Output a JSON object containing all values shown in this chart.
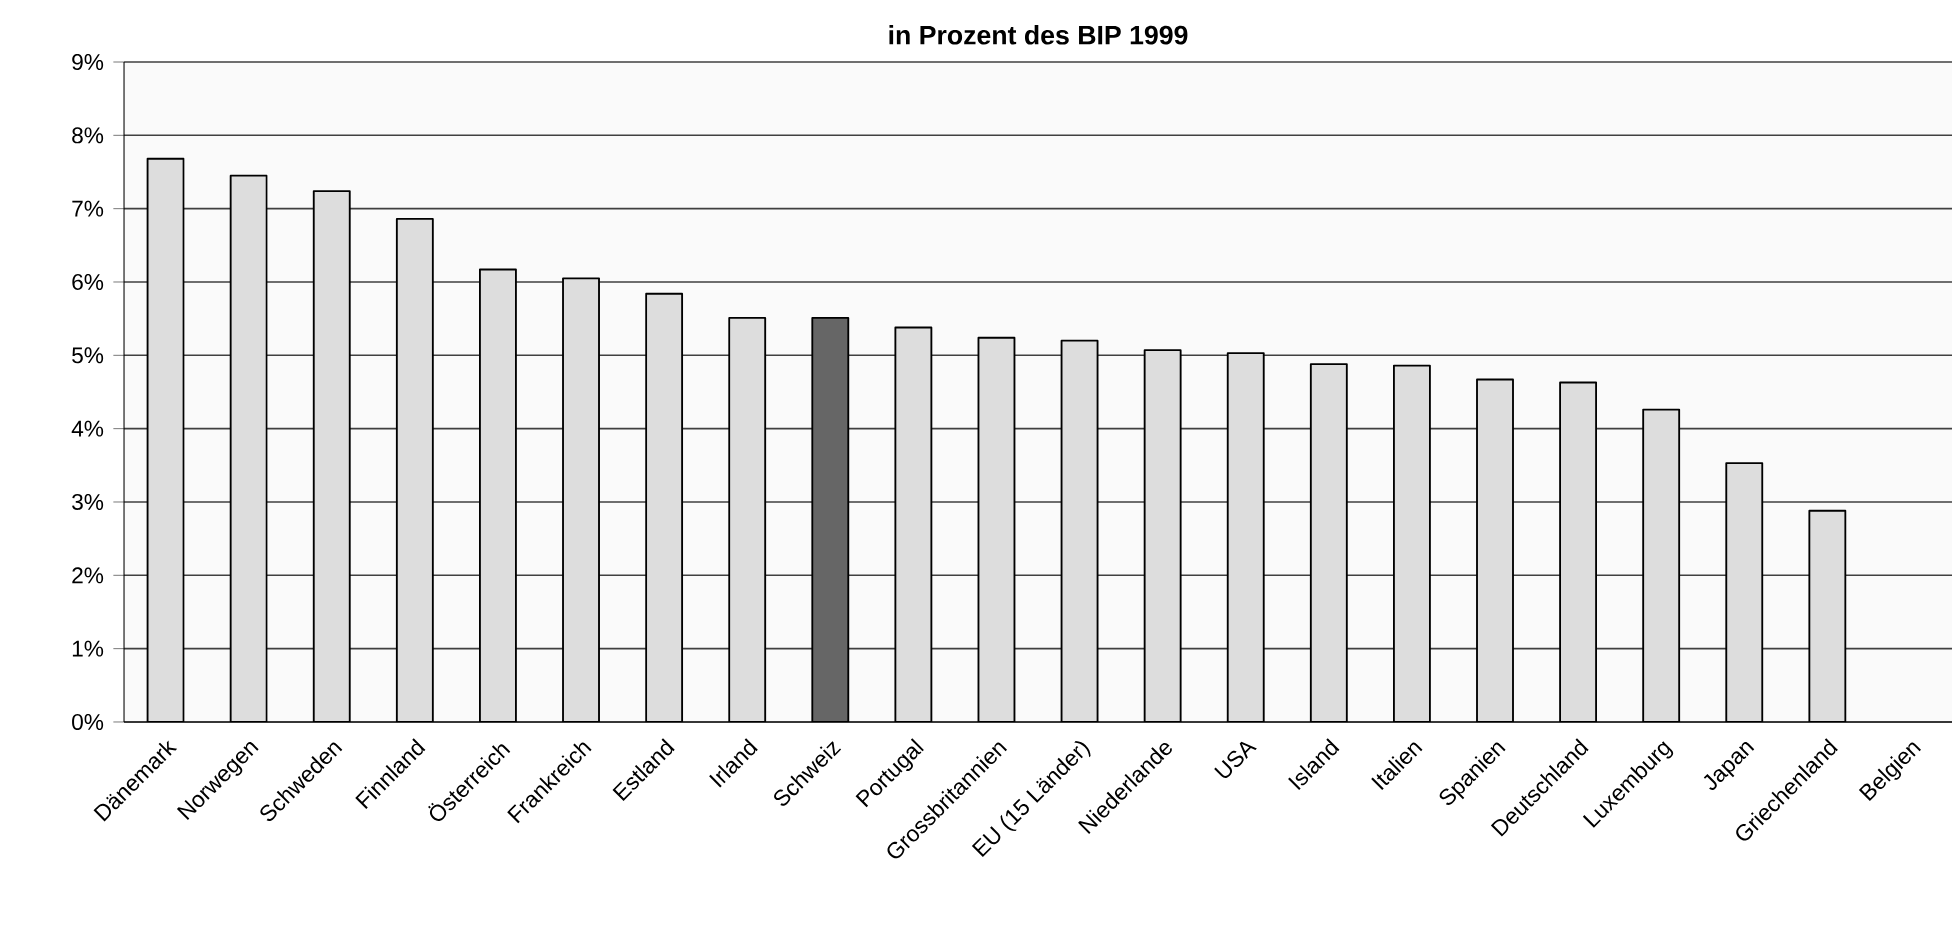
{
  "chart_data": {
    "type": "bar",
    "title": "in Prozent des BIP 1999",
    "categories": [
      "Dänemark",
      "Norwegen",
      "Schweden",
      "Finnland",
      "Österreich",
      "Frankreich",
      "Estland",
      "Irland",
      "Schweiz",
      "Portugal",
      "Grossbritannien",
      "EU (15 Länder)",
      "Niederlande",
      "USA",
      "Island",
      "Italien",
      "Spanien",
      "Deutschland",
      "Luxemburg",
      "Japan",
      "Griechenland",
      "Belgien"
    ],
    "values": [
      7.68,
      7.45,
      7.24,
      6.86,
      6.17,
      6.05,
      5.84,
      5.51,
      5.51,
      5.38,
      5.24,
      5.2,
      5.07,
      5.03,
      4.88,
      4.86,
      4.67,
      4.63,
      4.26,
      3.53,
      2.88,
      null
    ],
    "colors": [
      "#dddddd",
      "#dddddd",
      "#dddddd",
      "#dddddd",
      "#dddddd",
      "#dddddd",
      "#dddddd",
      "#dddddd",
      "#666666",
      "#dddddd",
      "#dddddd",
      "#dddddd",
      "#dddddd",
      "#dddddd",
      "#dddddd",
      "#dddddd",
      "#dddddd",
      "#dddddd",
      "#dddddd",
      "#dddddd",
      "#dddddd",
      "#dddddd"
    ],
    "ylim": [
      0,
      9
    ],
    "yticks": [
      {
        "value": 0,
        "label": "0%"
      },
      {
        "value": 1,
        "label": "1%"
      },
      {
        "value": 2,
        "label": "2%"
      },
      {
        "value": 3,
        "label": "3%"
      },
      {
        "value": 4,
        "label": "4%"
      },
      {
        "value": 5,
        "label": "5%"
      },
      {
        "value": 6,
        "label": "6%"
      },
      {
        "value": 7,
        "label": "7%"
      },
      {
        "value": 8,
        "label": "8%"
      },
      {
        "value": 9,
        "label": "9%"
      }
    ],
    "grid": "y"
  }
}
